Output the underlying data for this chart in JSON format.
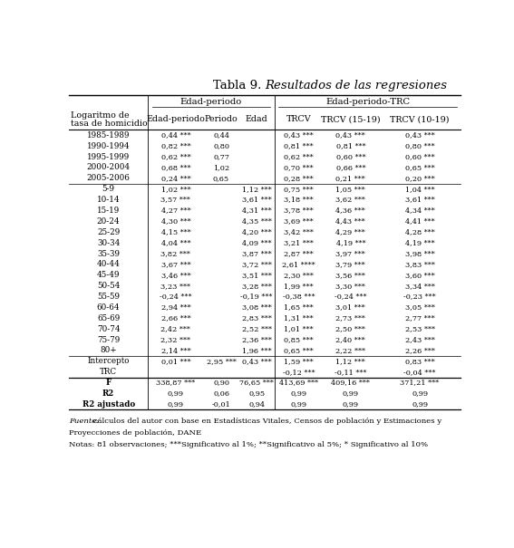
{
  "title_normal": "Tabla 9. ",
  "title_italic": "Resultados de las regresiones",
  "col_headers_row2": [
    "Logaritmo de\ntasa de homicidio",
    "Edad-periodo",
    "Periodo",
    "Edad",
    "TRCV",
    "TRCV (15-19)",
    "TRCV (10-19)"
  ],
  "rows": [
    [
      "1985-1989",
      "0,44 ***",
      "0,44",
      "",
      "0,43 ***",
      "0,43 ***",
      "0,43 ***"
    ],
    [
      "1990-1994",
      "0,82 ***",
      "0,80",
      "",
      "0,81 ***",
      "0,81 ***",
      "0,80 ***"
    ],
    [
      "1995-1999",
      "0,62 ***",
      "0,77",
      "",
      "0,62 ***",
      "0,60 ***",
      "0,60 ***"
    ],
    [
      "2000-2004",
      "0,68 ***",
      "1,02",
      "",
      "0,70 ***",
      "0,66 ***",
      "0,65 ***"
    ],
    [
      "2005-2006",
      "0,24 ***",
      "0,65",
      "",
      "0,28 ***",
      "0,21 ***",
      "0,20 ***"
    ],
    [
      "5-9",
      "1,02 ***",
      "",
      "1,12 ***",
      "0,75 ***",
      "1,05 ***",
      "1,04 ***"
    ],
    [
      "10-14",
      "3,57 ***",
      "",
      "3,61 ***",
      "3,18 ***",
      "3,62 ***",
      "3,61 ***"
    ],
    [
      "15-19",
      "4,27 ***",
      "",
      "4,31 ***",
      "3,78 ***",
      "4,36 ***",
      "4,34 ***"
    ],
    [
      "20-24",
      "4,30 ***",
      "",
      "4,35 ***",
      "3,69 ***",
      "4,43 ***",
      "4,41 ***"
    ],
    [
      "25-29",
      "4,15 ***",
      "",
      "4,20 ***",
      "3,42 ***",
      "4,29 ***",
      "4,28 ***"
    ],
    [
      "30-34",
      "4,04 ***",
      "",
      "4,09 ***",
      "3,21 ***",
      "4,19 ***",
      "4,19 ***"
    ],
    [
      "35-39",
      "3,82 ***",
      "",
      "3,87 ***",
      "2,87 ***",
      "3,97 ***",
      "3,98 ***"
    ],
    [
      "40-44",
      "3,67 ***",
      "",
      "3,72 ***",
      "2,61 ****",
      "3,79 ***",
      "3,83 ***"
    ],
    [
      "45-49",
      "3,46 ***",
      "",
      "3,51 ***",
      "2,30 ***",
      "3,56 ***",
      "3,60 ***"
    ],
    [
      "50-54",
      "3,23 ***",
      "",
      "3,28 ***",
      "1,99 ***",
      "3,30 ***",
      "3,34 ***"
    ],
    [
      "55-59",
      "-0,24 ***",
      "",
      "-0,19 ***",
      "-0,38 ***",
      "-0,24 ***",
      "-0,23 ***"
    ],
    [
      "60-64",
      "2,94 ***",
      "",
      "3,08 ***",
      "1,65 ***",
      "3,01 ***",
      "3,05 ***"
    ],
    [
      "65-69",
      "2,66 ***",
      "",
      "2,83 ***",
      "1,31 ***",
      "2,73 ***",
      "2,77 ***"
    ],
    [
      "70-74",
      "2,42 ***",
      "",
      "2,52 ***",
      "1,01 ***",
      "2,50 ***",
      "2,53 ***"
    ],
    [
      "75-79",
      "2,32 ***",
      "",
      "2,36 ***",
      "0,85 ***",
      "2,40 ***",
      "2,43 ***"
    ],
    [
      "80+",
      "2,14 ***",
      "",
      "1,96 ***",
      "0,65 ***",
      "2,22 ***",
      "2,26 ***"
    ],
    [
      "Intercepto",
      "0,01 ***",
      "2,95 ***",
      "0,43 ***",
      "1,59 ***",
      "1,12 ***",
      "0,83 ***"
    ],
    [
      "TRC",
      "",
      "",
      "",
      "-0,12 ***",
      "-0,11 ***",
      "-0,04 ***"
    ]
  ],
  "stats_rows": [
    [
      "F",
      "338,87 ***",
      "0,90",
      "76,65 ***",
      "413,69 ***",
      "409,16 ***",
      "371,21 ***"
    ],
    [
      "R2",
      "0,99",
      "0,06",
      "0,95",
      "0,99",
      "0,99",
      "0,99"
    ],
    [
      "R2 ajustado",
      "0,99",
      "-0,01",
      "0,94",
      "0,99",
      "0,99",
      "0,99"
    ]
  ],
  "footnote_fuente_label": "Fuente:",
  "footnote_fuente_text": " cálculos del autor con base en Estadísticas Vitales, Censos de población y Estimaciones y",
  "footnote_fuente_text2": "Proyecciones de población, DANE",
  "footnote_notas": "Notas: 81 observaciones; ***Significativo al 1%; **Significativo al 5%; * Significativo al 10%"
}
